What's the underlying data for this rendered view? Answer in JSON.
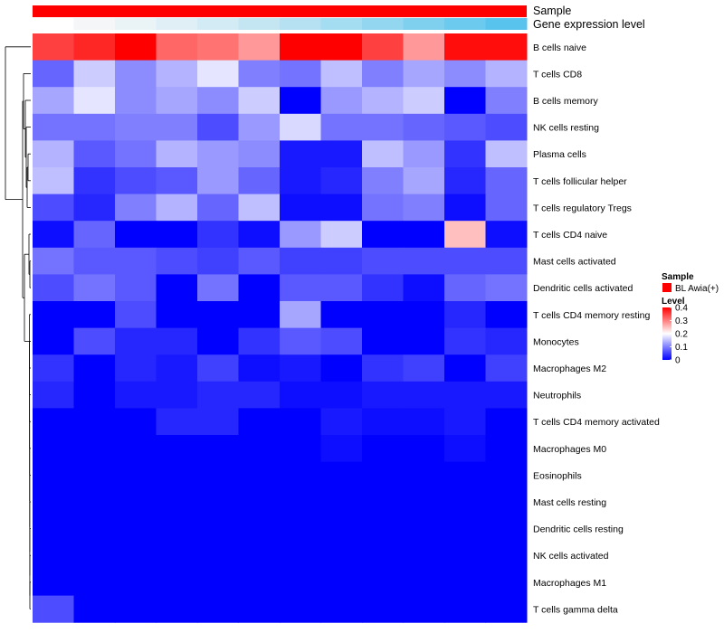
{
  "chart_data": {
    "type": "heatmap",
    "title": "",
    "annotation_tracks": [
      {
        "name": "Sample"
      },
      {
        "name": "Gene expression level"
      }
    ],
    "sample_track_color": "#ff0000",
    "gene_expression_track_colors": [
      "#ffffff",
      "#f4f6f7",
      "#eaf3f6",
      "#dfeff5",
      "#d2ebf4",
      "#c4e6f3",
      "#b5e1f2",
      "#a4dcf1",
      "#92d6f0",
      "#7fd0ef",
      "#6bcaee",
      "#58c4ee"
    ],
    "rows": [
      "B cells naive",
      "T cells CD8",
      "B cells memory",
      "NK cells resting",
      "Plasma cells",
      "T cells follicular helper",
      "T cells regulatory  Tregs",
      "T cells CD4 naive",
      "Mast cells activated",
      "Dendritic cells activated",
      "T cells CD4 memory resting",
      "Monocytes",
      "Macrophages M2",
      "Neutrophils",
      "T cells CD4 memory activated",
      "Macrophages M0",
      "Eosinophils",
      "Mast cells resting",
      "Dendritic cells resting",
      "NK cells activated",
      "Macrophages M1",
      "T cells gamma delta"
    ],
    "columns": 12,
    "color_scale": {
      "min": 0,
      "max": 0.4,
      "low": "#0000ff",
      "mid": "#ffffff",
      "high": "#ff0000",
      "midpoint": 0.2
    },
    "values": [
      [
        0.35,
        0.37,
        0.4,
        0.32,
        0.31,
        0.28,
        0.4,
        0.4,
        0.35,
        0.28,
        0.39,
        0.39
      ],
      [
        0.08,
        0.16,
        0.11,
        0.14,
        0.18,
        0.1,
        0.09,
        0.15,
        0.1,
        0.13,
        0.11,
        0.14
      ],
      [
        0.13,
        0.18,
        0.11,
        0.13,
        0.11,
        0.16,
        0.0,
        0.12,
        0.14,
        0.16,
        0.0,
        0.1
      ],
      [
        0.09,
        0.09,
        0.1,
        0.1,
        0.06,
        0.12,
        0.17,
        0.09,
        0.09,
        0.08,
        0.07,
        0.06
      ],
      [
        0.14,
        0.07,
        0.09,
        0.14,
        0.12,
        0.11,
        0.02,
        0.02,
        0.15,
        0.12,
        0.04,
        0.15
      ],
      [
        0.15,
        0.04,
        0.06,
        0.07,
        0.12,
        0.08,
        0.02,
        0.03,
        0.1,
        0.13,
        0.03,
        0.08
      ],
      [
        0.06,
        0.03,
        0.1,
        0.14,
        0.08,
        0.15,
        0.01,
        0.01,
        0.09,
        0.1,
        0.01,
        0.08
      ],
      [
        0.01,
        0.08,
        0.0,
        0.0,
        0.04,
        0.01,
        0.12,
        0.16,
        0.0,
        0.0,
        0.25,
        0.01
      ],
      [
        0.09,
        0.07,
        0.07,
        0.06,
        0.05,
        0.07,
        0.05,
        0.05,
        0.06,
        0.06,
        0.06,
        0.06
      ],
      [
        0.06,
        0.09,
        0.07,
        0.0,
        0.09,
        0.0,
        0.07,
        0.07,
        0.04,
        0.01,
        0.08,
        0.09
      ],
      [
        0.0,
        0.0,
        0.06,
        0.0,
        0.0,
        0.0,
        0.13,
        0.0,
        0.0,
        0.0,
        0.03,
        0.0
      ],
      [
        0.0,
        0.06,
        0.03,
        0.03,
        0.0,
        0.04,
        0.07,
        0.06,
        0.0,
        0.0,
        0.04,
        0.03
      ],
      [
        0.04,
        0.0,
        0.03,
        0.02,
        0.05,
        0.01,
        0.02,
        0.0,
        0.04,
        0.05,
        0.0,
        0.05
      ],
      [
        0.03,
        0.0,
        0.02,
        0.02,
        0.03,
        0.03,
        0.01,
        0.01,
        0.02,
        0.02,
        0.02,
        0.02
      ],
      [
        0.0,
        0.0,
        0.0,
        0.03,
        0.03,
        0.0,
        0.0,
        0.02,
        0.01,
        0.01,
        0.02,
        0.0
      ],
      [
        0.0,
        0.0,
        0.0,
        0.0,
        0.0,
        0.0,
        0.0,
        0.01,
        0.0,
        0.0,
        0.01,
        0.0
      ],
      [
        0.0,
        0.0,
        0.0,
        0.0,
        0.0,
        0.0,
        0.0,
        0.0,
        0.0,
        0.0,
        0.0,
        0.0
      ],
      [
        0.0,
        0.0,
        0.0,
        0.0,
        0.0,
        0.0,
        0.0,
        0.0,
        0.0,
        0.0,
        0.0,
        0.0
      ],
      [
        0.0,
        0.0,
        0.0,
        0.0,
        0.0,
        0.0,
        0.0,
        0.0,
        0.0,
        0.0,
        0.0,
        0.0
      ],
      [
        0.0,
        0.0,
        0.0,
        0.0,
        0.0,
        0.0,
        0.0,
        0.0,
        0.0,
        0.0,
        0.0,
        0.0
      ],
      [
        0.0,
        0.0,
        0.0,
        0.0,
        0.0,
        0.0,
        0.0,
        0.0,
        0.0,
        0.0,
        0.0,
        0.0
      ],
      [
        0.06,
        0.0,
        0.0,
        0.0,
        0.0,
        0.0,
        0.0,
        0.0,
        0.0,
        0.0,
        0.0,
        0.0
      ]
    ],
    "legend": {
      "sample_title": "Sample",
      "sample_entry": "BL Awia(+)",
      "sample_color": "#ff0000",
      "level_title": "Level",
      "level_ticks": [
        "0.4",
        "0.3",
        "0.2",
        "0.1",
        "0"
      ],
      "level_tick_values": [
        0.4,
        0.3,
        0.2,
        0.1,
        0
      ]
    }
  }
}
